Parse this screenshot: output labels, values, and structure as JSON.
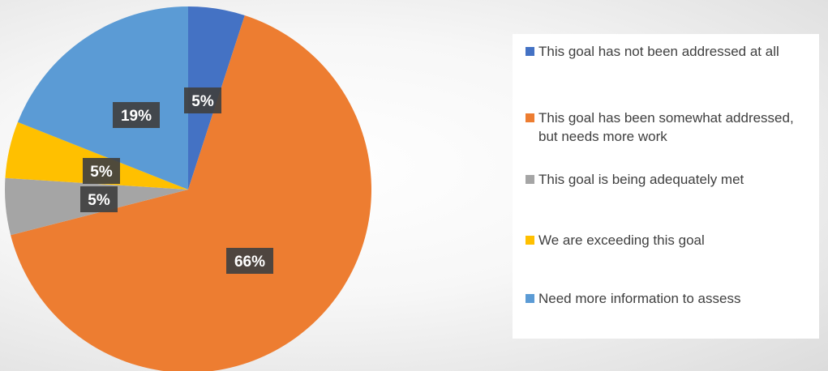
{
  "chart_data": {
    "type": "pie",
    "title": "",
    "slices": [
      {
        "label": "This goal has not been addressed at all",
        "value": 5,
        "display": "5%",
        "color": "#4472C4"
      },
      {
        "label": "This goal has been somewhat addressed, but needs more work",
        "value": 66,
        "display": "66%",
        "color": "#ED7D31"
      },
      {
        "label": "This goal is being adequately met",
        "value": 5,
        "display": "5%",
        "color": "#A5A5A5"
      },
      {
        "label": "We are exceeding this goal",
        "value": 5,
        "display": "5%",
        "color": "#FFC000"
      },
      {
        "label": "Need more information to assess",
        "value": 19,
        "display": "19%",
        "color": "#5B9BD5"
      }
    ],
    "legend_position": "right"
  }
}
